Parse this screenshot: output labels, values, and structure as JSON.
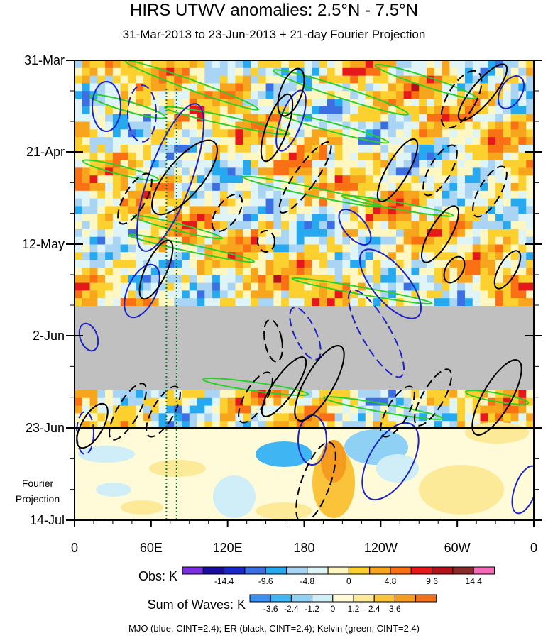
{
  "title": "HIRS UTWV anomalies: 2.5°N - 7.5°N",
  "subtitle": "31-Mar-2013 to 23-Jun-2013 + 21-day Fourier Projection",
  "chart_data": {
    "type": "heatmap",
    "x_axis": {
      "ticks": [
        "0",
        "60E",
        "120E",
        "180",
        "120W",
        "60W",
        "0"
      ],
      "tick_values_deg_east": [
        0,
        60,
        120,
        180,
        240,
        300,
        360
      ],
      "range": [
        0,
        360
      ]
    },
    "y_axis": {
      "ticks": [
        "31-Mar",
        "21-Apr",
        "12-May",
        "2-Jun",
        "23-Jun",
        "14-Jul"
      ],
      "range": [
        "31-Mar-2013",
        "14-Jul-2013"
      ],
      "direction": "time increases downward"
    },
    "observation_end": "23-Jun",
    "projection_label": [
      "Fourier",
      "Projection"
    ],
    "missing_data_band": [
      "~28-May",
      "~16-Jun"
    ],
    "colorbars": [
      {
        "name": "Obs",
        "title": "Obs: K",
        "tick_labels": [
          "-14.4",
          "-9.6",
          "-4.8",
          "0",
          "4.8",
          "9.6",
          "14.4"
        ],
        "colors": [
          "#7b2fe0",
          "#1a0d9e",
          "#1b28c9",
          "#3c6fe2",
          "#27a9f0",
          "#a9d4f3",
          "#dff4f6",
          "#fff7c2",
          "#fcd12f",
          "#f8a51e",
          "#f97114",
          "#e5181c",
          "#b3121a",
          "#8b2a2a",
          "#f46ab9"
        ]
      },
      {
        "name": "Sum of Waves",
        "title": "Sum of Waves: K",
        "tick_labels": [
          "-3.6",
          "-2.4",
          "-1.2",
          "0",
          "1.2",
          "2.4",
          "3.6"
        ],
        "colors": [
          "#3a8ff0",
          "#3fb6f3",
          "#8fd0f5",
          "#cfeef8",
          "#fffbd8",
          "#fdea99",
          "#fbc33a",
          "#f59b1f",
          "#f2701a"
        ]
      }
    ],
    "contours": {
      "caption": "MJO (blue, CINT=2.4); ER (black, CINT=2.4); Kelvin (green, CINT=2.4)",
      "MJO": {
        "color": "#1c22c8",
        "cint": 2.4
      },
      "ER": {
        "color": "#000000",
        "cint": 2.4
      },
      "Kelvin": {
        "color": "#2ccf2a",
        "cint": 2.4
      }
    },
    "reference_lines": {
      "type": "vertical dotted",
      "color": "#0f7a2a",
      "longitudes_deg_east": [
        72,
        80
      ]
    }
  }
}
